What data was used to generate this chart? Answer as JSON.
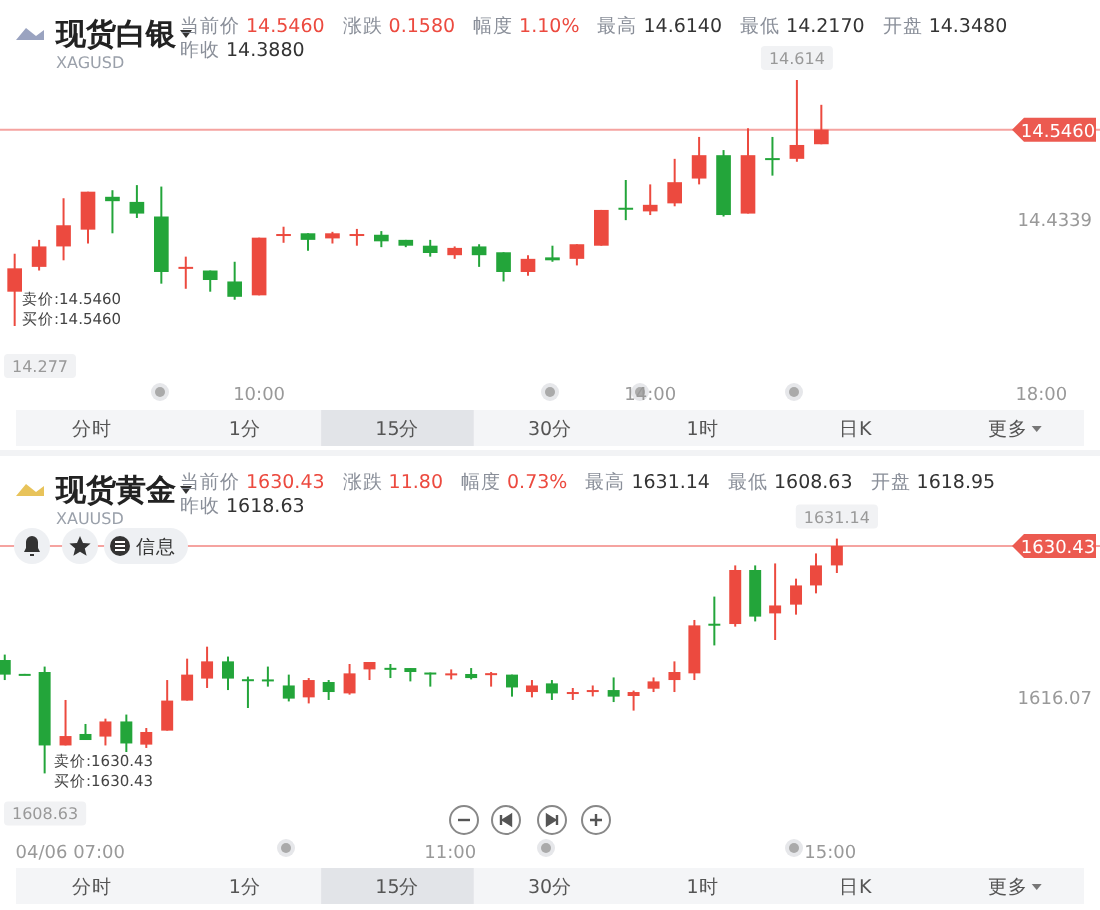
{
  "chart_data": [
    {
      "type": "candlestick",
      "title": "现货白银",
      "subtitle": "XAGUSD",
      "annotations": [
        "当前价",
        "14.5460",
        "涨跌",
        "0.1580",
        "幅度",
        "1.10%",
        "最高",
        "14.6140",
        "最低",
        "14.2170",
        "开盘",
        "14.3480",
        "昨收",
        "14.3880",
        "卖价:14.5460",
        "买价:14.5460",
        "分时",
        "1分",
        "15分",
        "30分",
        "1时",
        "日K",
        "更多",
        {
          "text": "14.614",
          "x": 15.5,
          "y": 14.614
        },
        {
          "text": "14.277",
          "x": 7.5,
          "y": 14.277
        },
        "14.4339"
      ],
      "x": [
        7.5,
        7.75,
        8,
        8.25,
        8.5,
        8.75,
        9,
        9.25,
        9.5,
        9.75,
        10,
        10.25,
        10.5,
        10.75,
        11,
        11.25,
        11.5,
        11.75,
        12,
        12.25,
        12.5,
        12.75,
        13,
        13.25,
        13.5,
        13.75,
        14,
        14.25,
        14.5,
        14.75,
        15,
        15.25,
        15.5,
        15.75
      ],
      "ohlc": [
        [
          14.324,
          14.376,
          14.277,
          14.356
        ],
        [
          14.358,
          14.395,
          14.353,
          14.386
        ],
        [
          14.386,
          14.452,
          14.367,
          14.415
        ],
        [
          14.409,
          14.461,
          14.39,
          14.461
        ],
        [
          14.454,
          14.463,
          14.404,
          14.448
        ],
        [
          14.447,
          14.47,
          14.425,
          14.431
        ],
        [
          14.427,
          14.468,
          14.335,
          14.351
        ],
        [
          14.357,
          14.372,
          14.328,
          14.358
        ],
        [
          14.353,
          14.353,
          14.324,
          14.34
        ],
        [
          14.338,
          14.365,
          14.313,
          14.317
        ],
        [
          14.319,
          14.398,
          14.319,
          14.398
        ],
        [
          14.401,
          14.413,
          14.391,
          14.403
        ],
        [
          14.404,
          14.404,
          14.38,
          14.395
        ],
        [
          14.397,
          14.406,
          14.39,
          14.404
        ],
        [
          14.401,
          14.41,
          14.387,
          14.403
        ],
        [
          14.402,
          14.407,
          14.385,
          14.393
        ],
        [
          14.395,
          14.395,
          14.385,
          14.387
        ],
        [
          14.387,
          14.395,
          14.372,
          14.377
        ],
        [
          14.374,
          14.386,
          14.369,
          14.384
        ],
        [
          14.386,
          14.389,
          14.358,
          14.374
        ],
        [
          14.378,
          14.378,
          14.338,
          14.351
        ],
        [
          14.351,
          14.374,
          14.346,
          14.369
        ],
        [
          14.371,
          14.387,
          14.365,
          14.367
        ],
        [
          14.369,
          14.389,
          14.36,
          14.389
        ],
        [
          14.387,
          14.436,
          14.387,
          14.436
        ],
        [
          14.439,
          14.477,
          14.422,
          14.437
        ],
        [
          14.434,
          14.471,
          14.429,
          14.443
        ],
        [
          14.445,
          14.506,
          14.441,
          14.474
        ],
        [
          14.479,
          14.536,
          14.471,
          14.511
        ],
        [
          14.511,
          14.518,
          14.427,
          14.429
        ],
        [
          14.431,
          14.548,
          14.431,
          14.511
        ],
        [
          14.507,
          14.536,
          14.483,
          14.505
        ],
        [
          14.506,
          14.614,
          14.502,
          14.525
        ],
        [
          14.526,
          14.58,
          14.526,
          14.546
        ]
      ],
      "xlim": [
        7.35,
        18.6
      ],
      "xticks": [
        {
          "value": 10,
          "label": "10:00"
        },
        {
          "value": 14,
          "label": "14:00"
        },
        {
          "value": 18,
          "label": "18:00"
        }
      ],
      "ref_lines": [
        {
          "axis": "y",
          "value": 14.546,
          "label": "14.5460",
          "color": "#f5a3a0"
        }
      ]
    },
    {
      "type": "candlestick",
      "title": "现货黄金",
      "subtitle": "XAUUSD",
      "annotations": [
        "当前价",
        "1630.43",
        "涨跌",
        "11.80",
        "幅度",
        "0.73%",
        "最高",
        "1631.14",
        "最低",
        "1608.63",
        "开盘",
        "1618.95",
        "昨收",
        "1618.63",
        "卖价:1630.43",
        "买价:1630.43",
        "分时",
        "1分",
        "15分",
        "30分",
        "1时",
        "日K",
        "更多",
        "信息",
        {
          "text": "1631.14",
          "x": 15.07,
          "y": 1631.14
        },
        {
          "text": "1608.63",
          "x": 6.73,
          "y": 1608.63
        },
        "1616.07"
      ],
      "x": [
        6.31,
        6.52,
        6.73,
        6.95,
        7.16,
        7.37,
        7.59,
        7.8,
        8.02,
        8.23,
        8.44,
        8.66,
        8.87,
        9.08,
        9.3,
        9.51,
        9.72,
        9.94,
        10.15,
        10.37,
        10.58,
        10.79,
        11.01,
        11.22,
        11.43,
        11.65,
        11.86,
        12.07,
        12.29,
        12.5,
        12.72,
        12.93,
        13.14,
        13.36,
        13.57,
        13.78,
        14,
        14.21,
        14.42,
        14.64,
        14.85,
        15.07
      ],
      "ohlc": [
        [
          1619.5,
          1620.02,
          1617.58,
          1618.1
        ],
        [
          1618.17,
          1618.17,
          1618.15,
          1618.15
        ],
        [
          1618.35,
          1618.87,
          1608.63,
          1611.31
        ],
        [
          1611.31,
          1615.67,
          1611.31,
          1612.21
        ],
        [
          1612.41,
          1613.37,
          1611.83,
          1611.83
        ],
        [
          1612.16,
          1613.88,
          1611.31,
          1613.61
        ],
        [
          1613.61,
          1614.27,
          1610.68,
          1611.5
        ],
        [
          1611.39,
          1612.98,
          1611.07,
          1612.6
        ],
        [
          1612.73,
          1617.58,
          1612.73,
          1615.61
        ],
        [
          1615.61,
          1619.63,
          1615.61,
          1618.1
        ],
        [
          1617.72,
          1620.78,
          1616.82,
          1619.37
        ],
        [
          1619.37,
          1619.83,
          1616.62,
          1617.72
        ],
        [
          1617.66,
          1617.91,
          1614.9,
          1617.58
        ],
        [
          1617.64,
          1618.87,
          1616.95,
          1617.55
        ],
        [
          1617.06,
          1618.1,
          1615.53,
          1615.8
        ],
        [
          1615.92,
          1617.77,
          1615.34,
          1617.58
        ],
        [
          1617.39,
          1617.58,
          1615.67,
          1616.43
        ],
        [
          1616.3,
          1619.12,
          1616.18,
          1618.22
        ],
        [
          1618.6,
          1619.31,
          1617.58,
          1619.31
        ],
        [
          1618.75,
          1619.12,
          1617.77,
          1618.69
        ],
        [
          1618.73,
          1618.73,
          1617.45,
          1618.35
        ],
        [
          1618.3,
          1618.3,
          1616.95,
          1618.24
        ],
        [
          1618.18,
          1618.6,
          1617.64,
          1618.22
        ],
        [
          1618.16,
          1618.73,
          1617.64,
          1617.77
        ],
        [
          1618.18,
          1618.35,
          1616.95,
          1618.24
        ],
        [
          1618.1,
          1618.1,
          1615.99,
          1616.87
        ],
        [
          1616.43,
          1617.58,
          1615.92,
          1617.06
        ],
        [
          1617.26,
          1617.58,
          1615.67,
          1616.3
        ],
        [
          1616.34,
          1616.82,
          1615.67,
          1616.43
        ],
        [
          1616.53,
          1617.06,
          1616.01,
          1616.62
        ],
        [
          1616.62,
          1617.83,
          1615.47,
          1615.99
        ],
        [
          1616.05,
          1616.57,
          1614.65,
          1616.43
        ],
        [
          1616.75,
          1617.83,
          1616.43,
          1617.45
        ],
        [
          1617.58,
          1619.37,
          1616.43,
          1618.35
        ],
        [
          1618.22,
          1623.34,
          1617.58,
          1622.82
        ],
        [
          1622.98,
          1625.58,
          1620.9,
          1622.86
        ],
        [
          1622.95,
          1628.57,
          1622.7,
          1628.13
        ],
        [
          1628.13,
          1628.57,
          1623.2,
          1623.66
        ],
        [
          1623.97,
          1628.76,
          1621.42,
          1624.73
        ],
        [
          1624.81,
          1627.3,
          1623.85,
          1626.65
        ],
        [
          1626.65,
          1629.72,
          1625.89,
          1628.57
        ],
        [
          1628.57,
          1631.14,
          1627.84,
          1630.43
        ]
      ],
      "xlim": [
        6.26,
        17.84
      ],
      "xticks": [
        {
          "value": 7,
          "label": "04/06 07:00"
        },
        {
          "value": 11,
          "label": "11:00"
        },
        {
          "value": 15,
          "label": "15:00"
        }
      ],
      "ref_lines": [
        {
          "axis": "y",
          "value": 1630.43,
          "label": "1630.43",
          "color": "#f5a3a0"
        }
      ]
    }
  ]
}
